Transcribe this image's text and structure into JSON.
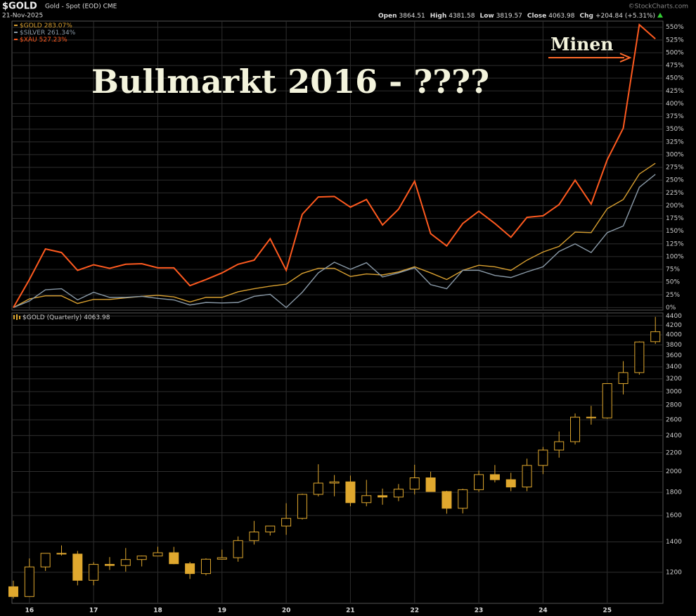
{
  "header": {
    "symbol": "$GOLD",
    "description": "Gold - Spot (EOD) CME",
    "date": "21-Nov-2025",
    "open_label": "Open",
    "high_label": "High",
    "low_label": "Low",
    "close_label": "Close",
    "chg_label": "Chg",
    "chg": "+204.84 (+5.31%)",
    "credit": "©StockCharts.com"
  },
  "chart_data": [
    {
      "type": "line",
      "annotations": [
        "Bullmarkt 2016 - ????",
        "Minen"
      ],
      "categories": [
        null,
        null,
        null,
        null,
        null,
        null,
        null,
        null,
        null,
        null,
        null,
        null,
        null,
        null,
        null,
        null,
        null,
        null,
        null,
        null,
        null,
        null,
        null,
        null,
        null,
        null,
        null,
        null,
        null,
        null,
        null,
        null,
        null,
        null,
        null,
        null,
        null,
        null,
        null,
        null,
        null
      ],
      "ylim": [
        -5,
        562
      ],
      "yticks": [
        {
          "value": 0,
          "label": "0%"
        },
        {
          "value": 25,
          "label": "25%"
        },
        {
          "value": 50,
          "label": "50%"
        },
        {
          "value": 75,
          "label": "75%"
        },
        {
          "value": 100,
          "label": "100%"
        },
        {
          "value": 125,
          "label": "125%"
        },
        {
          "value": 150,
          "label": "150%"
        },
        {
          "value": 175,
          "label": "175%"
        },
        {
          "value": 200,
          "label": "200%"
        },
        {
          "value": 225,
          "label": "225%"
        },
        {
          "value": 250,
          "label": "250%"
        },
        {
          "value": 275,
          "label": "275%"
        },
        {
          "value": 300,
          "label": "300%"
        },
        {
          "value": 325,
          "label": "325%"
        },
        {
          "value": 350,
          "label": "350%"
        },
        {
          "value": 375,
          "label": "375%"
        },
        {
          "value": 400,
          "label": "400%"
        },
        {
          "value": 425,
          "label": "425%"
        },
        {
          "value": 450,
          "label": "450%"
        },
        {
          "value": 475,
          "label": "475%"
        },
        {
          "value": 500,
          "label": "500%"
        },
        {
          "value": 525,
          "label": "525%"
        },
        {
          "value": 550,
          "label": "550%"
        }
      ],
      "grid": true,
      "series": [
        {
          "name": "$GOLD",
          "last_label": "283.07%",
          "color": "#d9a030",
          "values": [
            0,
            17,
            23,
            23,
            8,
            16,
            16,
            19,
            22,
            24,
            21,
            11,
            20,
            20,
            31,
            37,
            42,
            46,
            67,
            77,
            77,
            61,
            66,
            64,
            70,
            80,
            68,
            55,
            73,
            83,
            80,
            73,
            93,
            109,
            120,
            148,
            147,
            194,
            212,
            262,
            283.07
          ]
        },
        {
          "name": "$SILVER",
          "last_label": "261.34%",
          "color": "#8a9aa8",
          "values": [
            0,
            13,
            35,
            37,
            15,
            30,
            20,
            20,
            22,
            18,
            15,
            5,
            10,
            9,
            10,
            22,
            26,
            0,
            30,
            68,
            89,
            75,
            88,
            60,
            68,
            78,
            45,
            37,
            73,
            73,
            63,
            59,
            70,
            80,
            110,
            125,
            108,
            147,
            160,
            236,
            261.34
          ]
        },
        {
          "name": "$XAU",
          "last_label": "527.23%",
          "color": "#ff5a1f",
          "values": [
            0,
            55,
            115,
            108,
            73,
            84,
            77,
            85,
            86,
            78,
            78,
            43,
            55,
            68,
            85,
            93,
            135,
            73,
            183,
            217,
            218,
            197,
            212,
            162,
            193,
            248,
            145,
            121,
            165,
            189,
            165,
            138,
            177,
            180,
            202,
            250,
            203,
            290,
            352,
            555,
            527.23
          ]
        }
      ]
    },
    {
      "type": "candlestick",
      "name": "$GOLD (Quarterly)",
      "color": "#e0a82e",
      "log_y": true,
      "grid": true,
      "categories": [
        null,
        "16",
        null,
        null,
        null,
        "17",
        null,
        null,
        null,
        "18",
        null,
        null,
        null,
        "19",
        null,
        null,
        null,
        "20",
        null,
        null,
        null,
        "21",
        null,
        null,
        null,
        "22",
        null,
        null,
        null,
        "23",
        null,
        null,
        null,
        "24",
        null,
        null,
        null,
        "25",
        null,
        null,
        null
      ],
      "ylim": [
        1025,
        4470
      ],
      "yticks": [
        1200,
        1400,
        1600,
        1800,
        2000,
        2200,
        2400,
        2600,
        2800,
        3000,
        3200,
        3400,
        3600,
        3800,
        4000,
        4200,
        4400
      ],
      "open": [
        1115,
        1061,
        1233,
        1321,
        1316,
        1152,
        1249,
        1242,
        1280,
        1303,
        1325,
        1253,
        1192,
        1282,
        1292,
        1409,
        1472,
        1517,
        1577,
        1781,
        1886,
        1898,
        1708,
        1770,
        1757,
        1829,
        1937,
        1807,
        1660,
        1824,
        1969,
        1919,
        1849,
        2063,
        2230,
        2327,
        2635,
        2625,
        3124,
        3303,
        3864.51
      ],
      "high": [
        1150,
        1287,
        1303,
        1375,
        1337,
        1263,
        1296,
        1357,
        1306,
        1366,
        1365,
        1265,
        1288,
        1346,
        1439,
        1557,
        1516,
        1703,
        1788,
        2075,
        1965,
        1959,
        1917,
        1834,
        1877,
        2070,
        1998,
        1814,
        1833,
        2009,
        2067,
        1987,
        2135,
        2265,
        2450,
        2685,
        2790,
        3128,
        3500,
        3870,
        4381.58
      ],
      "low": [
        1050,
        1061,
        1208,
        1306,
        1123,
        1123,
        1214,
        1204,
        1236,
        1302,
        1250,
        1160,
        1181,
        1280,
        1266,
        1381,
        1446,
        1451,
        1568,
        1763,
        1764,
        1677,
        1677,
        1690,
        1721,
        1780,
        1805,
        1615,
        1617,
        1804,
        1893,
        1810,
        1810,
        1974,
        2146,
        2294,
        2537,
        2615,
        2957,
        3268,
        3819.57
      ],
      "close": [
        1061,
        1233,
        1321,
        1316,
        1152,
        1249,
        1242,
        1280,
        1303,
        1325,
        1253,
        1192,
        1282,
        1292,
        1409,
        1472,
        1517,
        1577,
        1781,
        1886,
        1898,
        1708,
        1770,
        1757,
        1829,
        1937,
        1807,
        1660,
        1824,
        1969,
        1919,
        1849,
        2063,
        2230,
        2327,
        2635,
        2625,
        3124,
        3303,
        3858,
        4063.98
      ]
    }
  ]
}
